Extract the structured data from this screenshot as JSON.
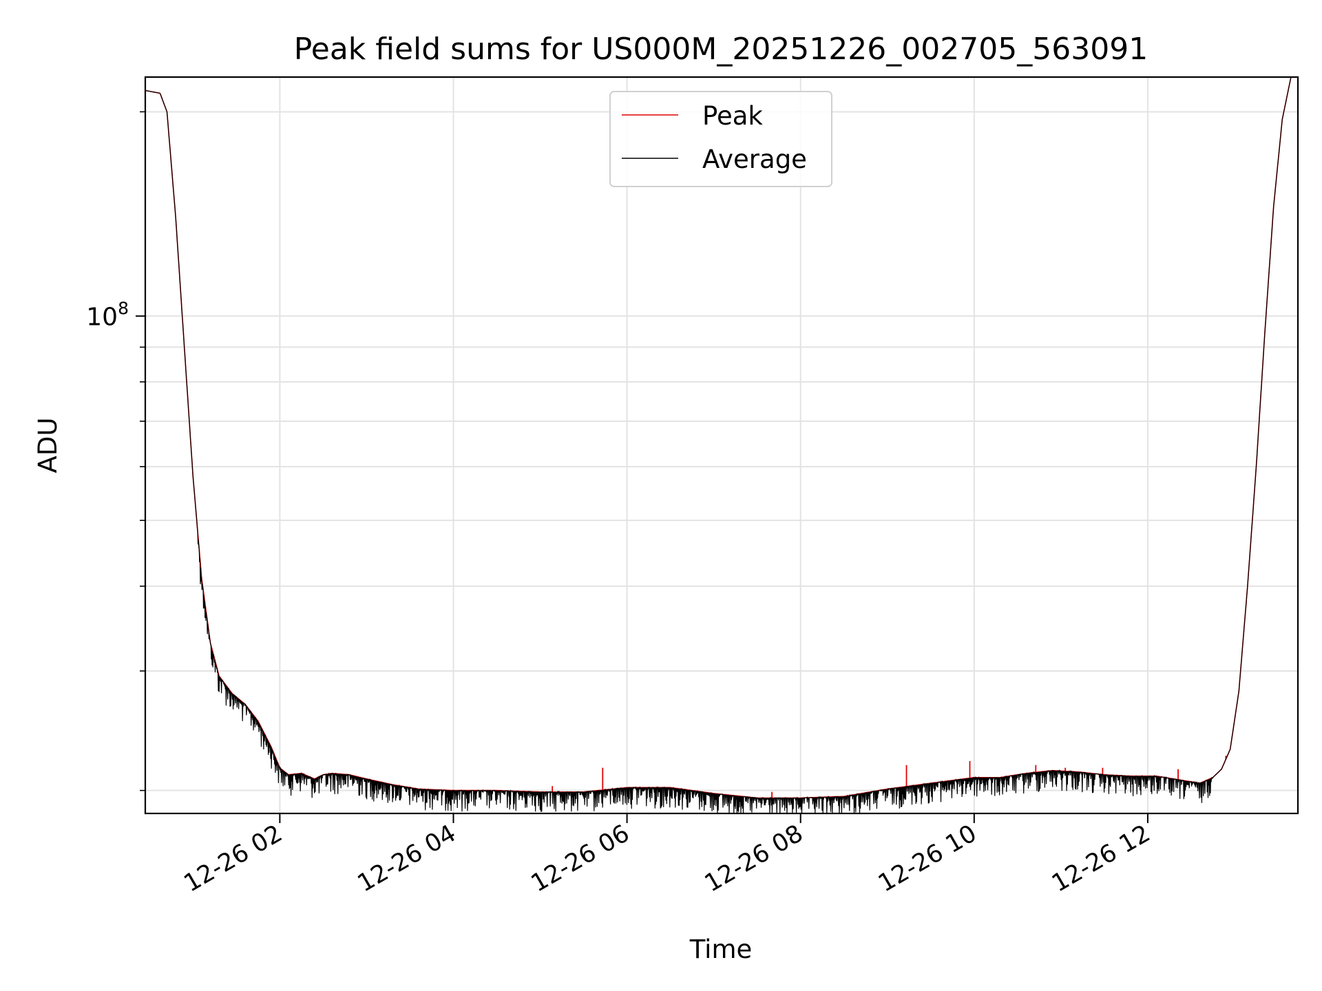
{
  "chart_data": {
    "type": "line",
    "title": "Peak field sums for US000M_20251226_002705_563091",
    "xlabel": "Time",
    "ylabel": "ADU",
    "y_scale": "log",
    "x_range_hours": [
      0.45,
      13.73
    ],
    "ylim": [
      18500000,
      225000000
    ],
    "x_ticks": [
      {
        "hour": 2,
        "label": "12-26 02"
      },
      {
        "hour": 4,
        "label": "12-26 04"
      },
      {
        "hour": 6,
        "label": "12-26 06"
      },
      {
        "hour": 8,
        "label": "12-26 08"
      },
      {
        "hour": 10,
        "label": "12-26 10"
      },
      {
        "hour": 12,
        "label": "12-26 12"
      }
    ],
    "y_major_tick": {
      "value": 100000000,
      "label_base": "10",
      "label_exp": "8"
    },
    "y_minor_ticks": [
      20000000,
      30000000,
      40000000,
      50000000,
      60000000,
      70000000,
      80000000,
      90000000,
      200000000
    ],
    "grid": true,
    "legend_position": "top-center",
    "series": [
      {
        "name": "Peak",
        "color": "#e00000",
        "x_hours": [
          0.45,
          0.62,
          0.7,
          0.8,
          0.9,
          1.0,
          1.1,
          1.2,
          1.3,
          1.45,
          1.6,
          1.75,
          1.9,
          2.0,
          2.1,
          2.25,
          2.4,
          2.5,
          2.6,
          2.8,
          3.0,
          3.3,
          3.6,
          4.0,
          4.5,
          5.0,
          5.5,
          6.0,
          6.5,
          7.0,
          7.5,
          8.0,
          8.5,
          9.0,
          9.5,
          10.0,
          10.3,
          10.6,
          10.9,
          11.2,
          11.5,
          11.8,
          12.1,
          12.4,
          12.6,
          12.75,
          12.85,
          12.95,
          13.05,
          13.15,
          13.25,
          13.35,
          13.45,
          13.55,
          13.65,
          13.73
        ],
        "values": [
          215000000,
          213000000,
          200000000,
          140000000,
          90000000,
          58000000,
          41000000,
          33000000,
          29500000,
          27800000,
          26800000,
          25300000,
          23200000,
          21600000,
          21100000,
          21200000,
          20800000,
          21100000,
          21200000,
          21100000,
          20800000,
          20400000,
          20100000,
          20000000,
          20000000,
          19900000,
          19900000,
          20200000,
          20200000,
          19800000,
          19500000,
          19500000,
          19600000,
          20100000,
          20500000,
          20900000,
          20900000,
          21200000,
          21400000,
          21300000,
          21100000,
          21000000,
          21000000,
          20700000,
          20500000,
          20900000,
          21500000,
          23000000,
          28000000,
          40000000,
          60000000,
          95000000,
          145000000,
          195000000,
          225000000,
          225000000
        ],
        "spikes": [
          {
            "hour": 5.14,
            "value": 20300000
          },
          {
            "hour": 5.72,
            "value": 21600000
          },
          {
            "hour": 7.67,
            "value": 19900000
          },
          {
            "hour": 9.22,
            "value": 21800000
          },
          {
            "hour": 9.95,
            "value": 22100000
          },
          {
            "hour": 10.71,
            "value": 21800000
          },
          {
            "hour": 11.05,
            "value": 21600000
          },
          {
            "hour": 11.48,
            "value": 21600000
          },
          {
            "hour": 12.35,
            "value": 21500000
          },
          {
            "hour": 12.9,
            "value": 22500000
          }
        ]
      },
      {
        "name": "Average",
        "color": "#000000",
        "x_hours": [
          0.45,
          0.62,
          0.7,
          0.8,
          0.9,
          1.0,
          1.1,
          1.2,
          1.3,
          1.45,
          1.6,
          1.75,
          1.9,
          2.0,
          2.1,
          2.25,
          2.4,
          2.5,
          2.6,
          2.8,
          3.0,
          3.3,
          3.6,
          4.0,
          4.5,
          5.0,
          5.5,
          6.0,
          6.5,
          7.0,
          7.5,
          8.0,
          8.5,
          9.0,
          9.5,
          10.0,
          10.3,
          10.6,
          10.9,
          11.2,
          11.5,
          11.8,
          12.1,
          12.4,
          12.6,
          12.75,
          12.85,
          12.95,
          13.05,
          13.15,
          13.25,
          13.35,
          13.45,
          13.55,
          13.65,
          13.73
        ],
        "values": [
          215000000,
          213000000,
          200000000,
          140000000,
          90000000,
          58000000,
          41000000,
          33000000,
          29500000,
          27800000,
          26800000,
          25300000,
          23200000,
          21600000,
          21100000,
          21200000,
          20800000,
          21100000,
          21200000,
          21100000,
          20800000,
          20400000,
          20100000,
          20000000,
          20000000,
          19900000,
          19900000,
          20200000,
          20200000,
          19800000,
          19500000,
          19500000,
          19600000,
          20100000,
          20500000,
          20900000,
          20900000,
          21200000,
          21400000,
          21300000,
          21100000,
          21000000,
          21000000,
          20700000,
          20500000,
          20900000,
          21500000,
          23000000,
          28000000,
          40000000,
          60000000,
          95000000,
          145000000,
          195000000,
          225000000,
          225000000
        ],
        "noise_dip_fraction": 0.07
      }
    ]
  }
}
